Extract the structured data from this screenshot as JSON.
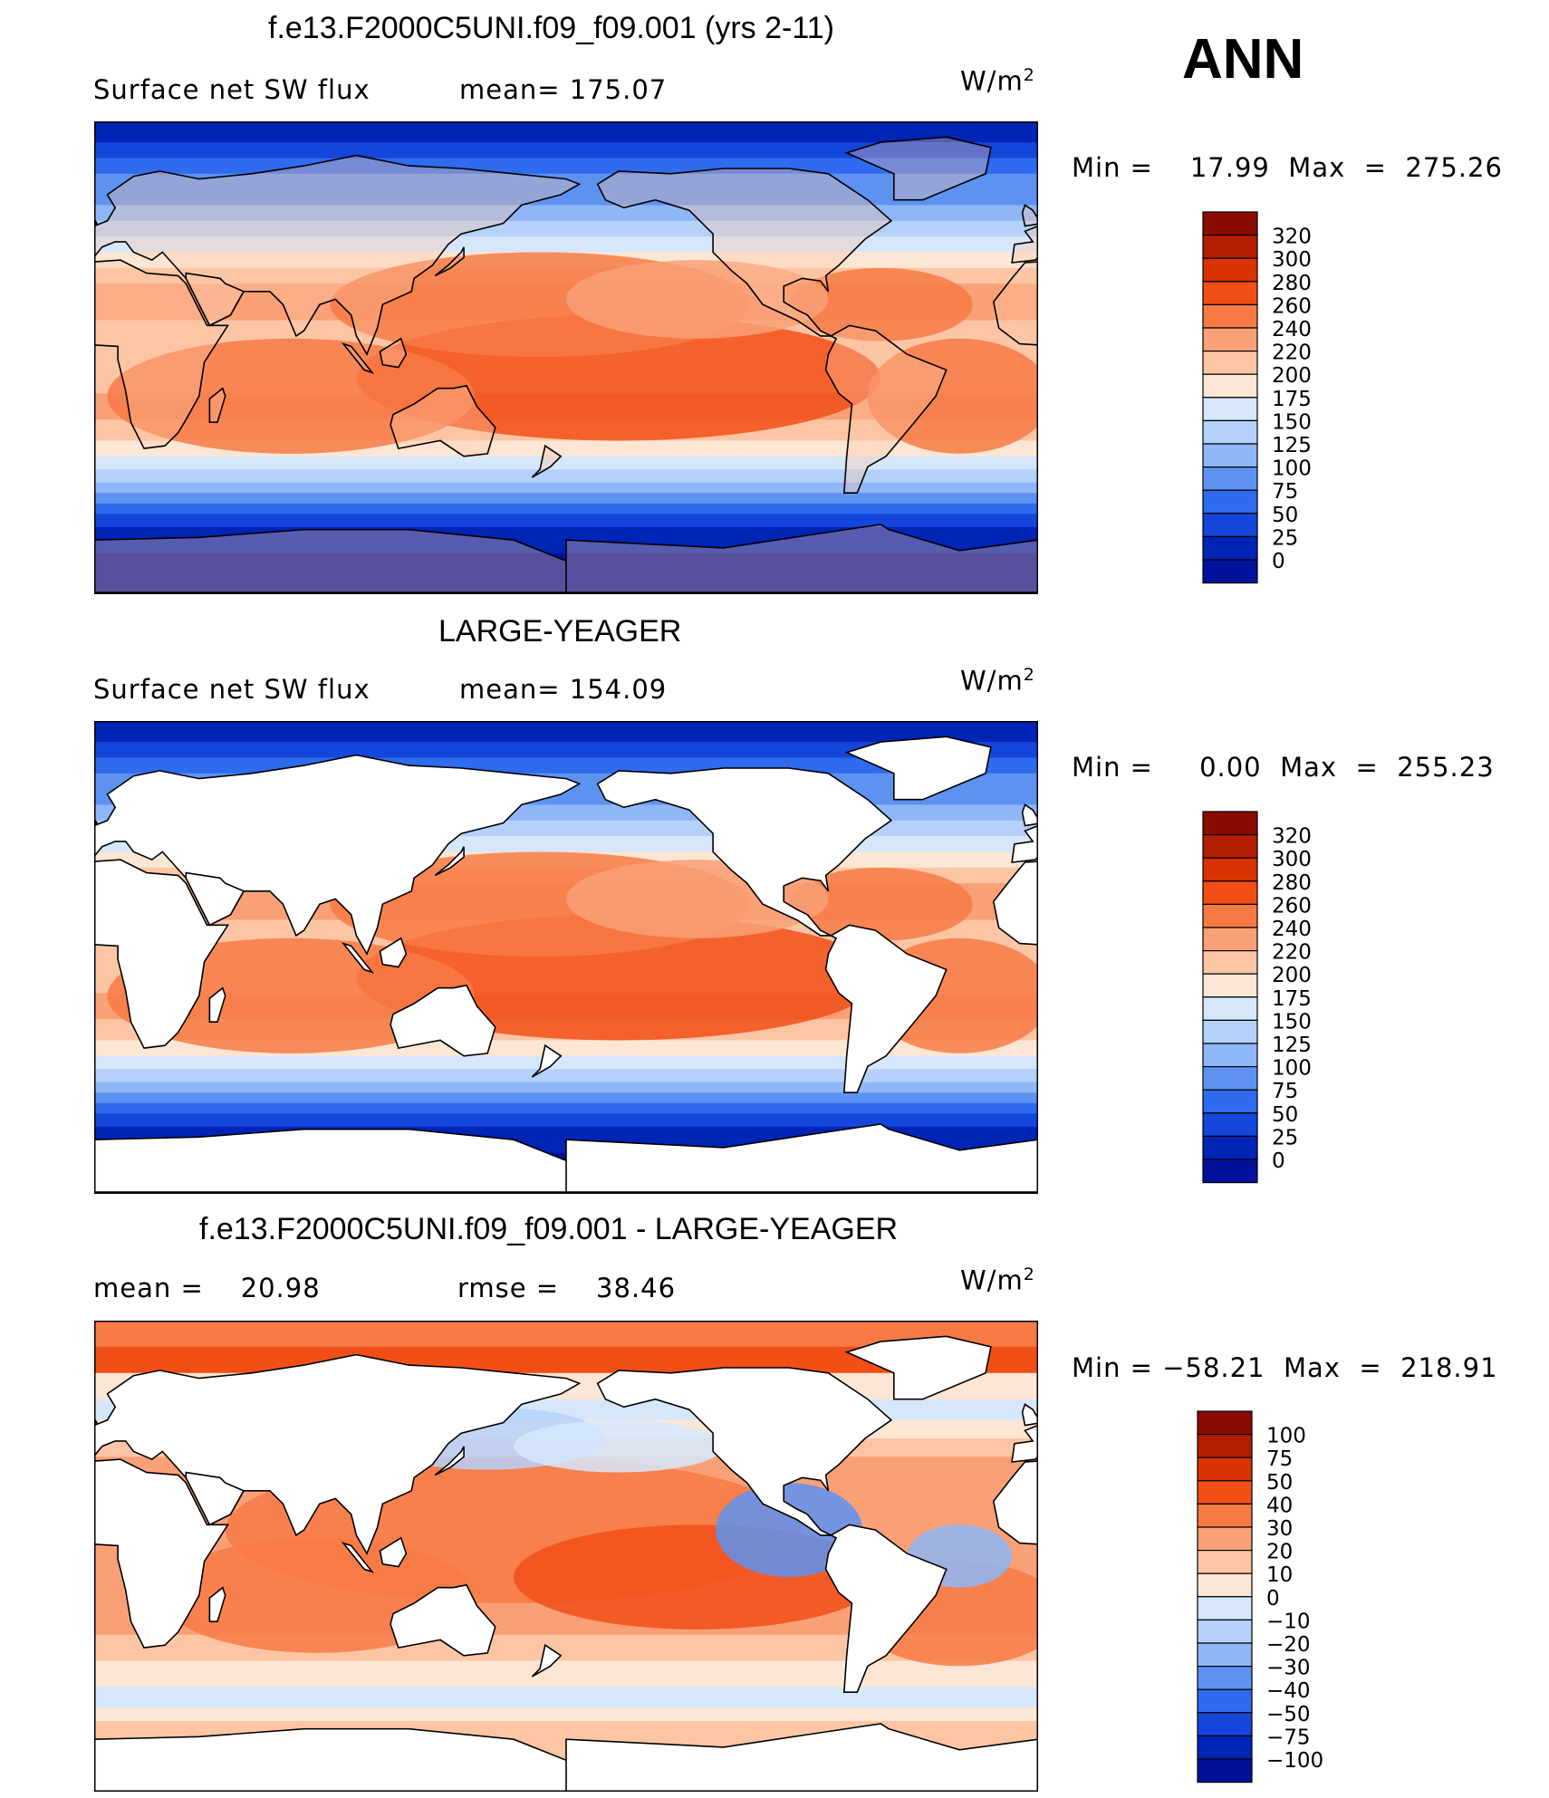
{
  "season": "ANN",
  "chart_data": [
    {
      "type": "heatmap",
      "title": "f.e13.F2000C5UNI.f09_f09.001 (yrs 2-11)",
      "variable": "Surface net SW flux",
      "stat_left": "mean= 175.07",
      "units": "W/m",
      "units_exp": "2",
      "minmax": "Min =    17.99  Max  =  275.26",
      "min": 17.99,
      "max": 275.26,
      "mean": 175.07,
      "colorbar_levels": [
        "320",
        "300",
        "280",
        "260",
        "240",
        "220",
        "200",
        "175",
        "150",
        "125",
        "100",
        "75",
        "50",
        "25",
        "0"
      ],
      "colorbar_colors": [
        "#8b0b00",
        "#b31e00",
        "#d83300",
        "#f24f17",
        "#f77a45",
        "#f9a077",
        "#fcc6a5",
        "#fde6d4",
        "#d6e7fb",
        "#b5d1fa",
        "#8fb6f6",
        "#5e92f1",
        "#2e6bee",
        "#1446dc",
        "#0024b6",
        "#00129b"
      ],
      "fill": "sw_control"
    },
    {
      "type": "heatmap",
      "title": "LARGE-YEAGER",
      "variable": "Surface net SW flux",
      "stat_left": "mean= 154.09",
      "units": "W/m",
      "units_exp": "2",
      "minmax": "Min =     0.00  Max  =  255.23",
      "min": 0.0,
      "max": 255.23,
      "mean": 154.09,
      "colorbar_levels": [
        "320",
        "300",
        "280",
        "260",
        "240",
        "220",
        "200",
        "175",
        "150",
        "125",
        "100",
        "75",
        "50",
        "25",
        "0"
      ],
      "colorbar_colors": [
        "#8b0b00",
        "#b31e00",
        "#d83300",
        "#f24f17",
        "#f77a45",
        "#f9a077",
        "#fcc6a5",
        "#fde6d4",
        "#d6e7fb",
        "#b5d1fa",
        "#8fb6f6",
        "#5e92f1",
        "#2e6bee",
        "#1446dc",
        "#0024b6",
        "#00129b"
      ],
      "fill": "sw_obs"
    },
    {
      "type": "heatmap",
      "title": "f.e13.F2000C5UNI.f09_f09.001 - LARGE-YEAGER",
      "variable": "mean =    20.98",
      "stat_left": "rmse =    38.46",
      "units": "W/m",
      "units_exp": "2",
      "minmax": "Min = −58.21  Max  =  218.91",
      "min": -58.21,
      "max": 218.91,
      "mean": 20.98,
      "rmse": 38.46,
      "colorbar_levels": [
        "100",
        "75",
        "50",
        "40",
        "30",
        "20",
        "10",
        "0",
        "−10",
        "−20",
        "−30",
        "−40",
        "−50",
        "−75",
        "−100"
      ],
      "colorbar_colors": [
        "#8b0b00",
        "#b31e00",
        "#d83300",
        "#f24f17",
        "#f77a45",
        "#f9a077",
        "#fcc6a5",
        "#fde6d4",
        "#d6e7fb",
        "#b5d1fa",
        "#8fb6f6",
        "#5e92f1",
        "#2e6bee",
        "#1446dc",
        "#0024b6",
        "#00129b"
      ],
      "fill": "diff"
    }
  ]
}
